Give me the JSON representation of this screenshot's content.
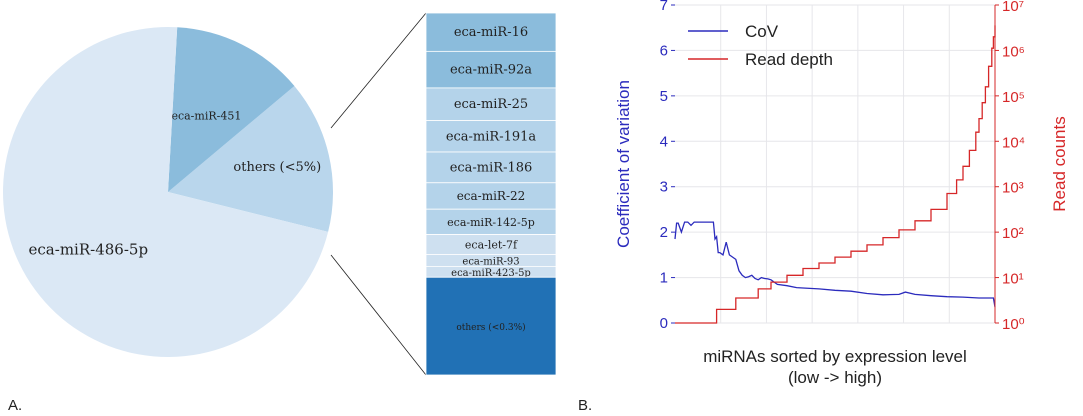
{
  "panel_labels": {
    "a": "A.",
    "b": "B."
  },
  "chart_data": [
    {
      "type": "pie",
      "labels": [
        "eca-miR-486-5p",
        "eca-miR-451",
        "others (<5%)"
      ],
      "values": [
        72.0,
        13.0,
        15.0
      ],
      "colors": [
        "#dbe8f5",
        "#8bbcdc",
        "#b9d6ec"
      ],
      "start_angle_deg": -14,
      "exploded_slice": "others (<5%)"
    },
    {
      "type": "bar",
      "orientation": "stacked-vertical",
      "categories": [
        "eca-miR-16",
        "eca-miR-92a",
        "eca-miR-25",
        "eca-miR-191a",
        "eca-miR-186",
        "eca-miR-22",
        "eca-miR-142-5p",
        "eca-let-7f",
        "eca-miR-93",
        "eca-miR-423-5p",
        "others (<0.3%)"
      ],
      "values": [
        10.6,
        10.1,
        9.0,
        8.7,
        8.5,
        7.3,
        7.0,
        5.5,
        3.3,
        3.0,
        27.0
      ],
      "colors": [
        "#8bbcdc",
        "#8bbcdc",
        "#b4d3ea",
        "#b4d3ea",
        "#b4d3ea",
        "#b4d3ea",
        "#b4d3ea",
        "#cee0f0",
        "#cee0f0",
        "#cee0f0",
        "#2171b5"
      ]
    },
    {
      "type": "line",
      "xlabel": "miRNAs sorted by expression level\n(low -> high)",
      "ylabel": "Coefficient of variation",
      "y2label": "Read counts",
      "ylim": [
        0,
        7
      ],
      "yticks": [
        "0",
        "1",
        "2",
        "3",
        "4",
        "5",
        "6",
        "7"
      ],
      "y2_scale": "log",
      "y2ticks": [
        "10⁰",
        "10¹",
        "10²",
        "10³",
        "10⁴",
        "10⁵",
        "10⁶",
        "10⁷"
      ],
      "y2lim_exp": [
        0,
        7
      ],
      "xlim": [
        0,
        100
      ],
      "grid": true,
      "legend": "top-left",
      "series": [
        {
          "name": "CoV",
          "color": "#2b2bbd",
          "x": [
            0,
            0.5,
            1,
            2,
            3,
            4,
            5,
            6,
            7,
            8,
            9,
            10,
            11,
            12,
            12.5,
            13,
            13.5,
            14,
            15,
            16,
            17,
            18,
            19,
            20,
            21,
            22,
            23,
            24,
            25,
            26,
            27,
            28,
            29,
            30,
            32,
            35,
            38,
            40,
            45,
            50,
            55,
            60,
            65,
            70,
            72,
            75,
            80,
            85,
            90,
            95,
            99.5,
            100
          ],
          "y": [
            1.85,
            2.2,
            2.2,
            2.0,
            2.22,
            2.22,
            2.15,
            2.22,
            2.22,
            2.22,
            2.22,
            2.22,
            2.22,
            2.22,
            1.85,
            1.9,
            1.55,
            1.55,
            1.5,
            1.78,
            1.5,
            1.45,
            1.4,
            1.15,
            1.05,
            1.0,
            1.02,
            1.05,
            0.98,
            0.95,
            1.0,
            0.98,
            0.97,
            0.95,
            0.85,
            0.82,
            0.78,
            0.77,
            0.75,
            0.72,
            0.7,
            0.65,
            0.62,
            0.63,
            0.68,
            0.63,
            0.6,
            0.58,
            0.57,
            0.55,
            0.55,
            0.35
          ]
        },
        {
          "name": "Read depth",
          "color": "#d62728",
          "x": [
            0,
            7,
            12,
            13,
            18,
            19,
            25,
            26,
            30,
            35,
            40,
            45,
            50,
            55,
            60,
            65,
            70,
            75,
            80,
            85,
            88,
            90,
            92,
            94,
            95,
            96,
            97,
            98,
            99,
            99.5,
            100
          ],
          "y_exp": [
            0,
            0,
            0,
            0.3,
            0.3,
            0.55,
            0.55,
            0.75,
            0.9,
            1.05,
            1.2,
            1.32,
            1.45,
            1.58,
            1.72,
            1.88,
            2.05,
            2.25,
            2.5,
            2.85,
            3.15,
            3.45,
            3.8,
            4.2,
            4.5,
            4.85,
            5.2,
            5.65,
            6.05,
            6.3,
            6.55
          ]
        }
      ]
    }
  ]
}
